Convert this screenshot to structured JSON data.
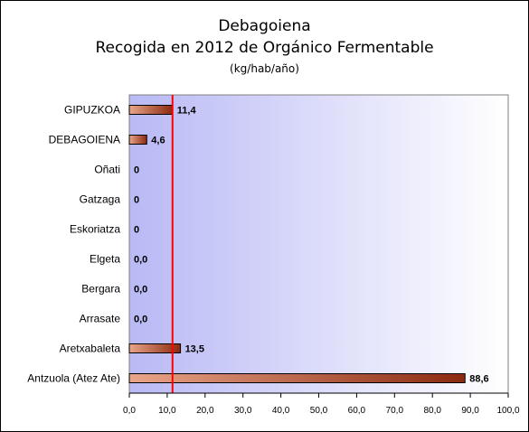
{
  "chart_data": {
    "type": "bar",
    "orientation": "horizontal",
    "title": "Debagoiena",
    "subtitle": "Recogida en 2012 de Orgánico Fermentable",
    "unit": "(kg/hab/año)",
    "categories": [
      "GIPUZKOA",
      "DEBAGOIENA",
      "Oñati",
      "Gatzaga",
      "Eskoriatza",
      "Elgeta",
      "Bergara",
      "Arrasate",
      "Aretxabaleta",
      "Antzuola (Atez Ate)"
    ],
    "values": [
      11.4,
      4.6,
      0,
      0,
      0,
      0,
      0,
      0,
      13.5,
      88.6
    ],
    "value_labels": [
      "11,4",
      "4,6",
      "0",
      "0",
      "0",
      "0,0",
      "0,0",
      "0,0",
      "13,5",
      "88,6"
    ],
    "xlim": [
      0,
      100
    ],
    "x_ticks": [
      "0,0",
      "10,0",
      "20,0",
      "30,0",
      "40,0",
      "50,0",
      "60,0",
      "70,0",
      "80,0",
      "90,0",
      "100,0"
    ],
    "reference_line": 11.4,
    "grid": false,
    "legend": "none",
    "colors": {
      "bar_light": "#e9a58a",
      "bar_dark": "#8b2a10",
      "plot_bg_left": "#b9b9f5",
      "plot_bg_right": "#ffffff",
      "reference_line": "#ff0000"
    }
  }
}
